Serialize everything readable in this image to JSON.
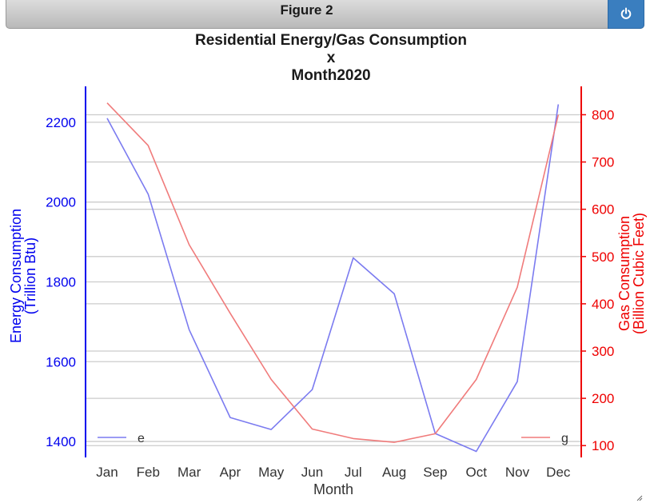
{
  "window": {
    "title": "Figure 2",
    "power_icon": "power-icon",
    "power_color": "#3a7ebf"
  },
  "chart_data": {
    "type": "line",
    "title": "Residential Energy/Gas Consumption\nx\nMonth2020",
    "xlabel": "Month",
    "categories": [
      "Jan",
      "Feb",
      "Mar",
      "Apr",
      "May",
      "Jun",
      "Jul",
      "Aug",
      "Sep",
      "Oct",
      "Nov",
      "Dec"
    ],
    "grid": true,
    "left_axis": {
      "label": "Energy Consumption\n(Trillion Btu)",
      "ticks": [
        1400,
        1600,
        1800,
        2000,
        2200
      ],
      "ylim": [
        1360,
        2290
      ],
      "color": "#0000ee"
    },
    "right_axis": {
      "label": "Gas Consumption\n(Billion Cubic Feet)",
      "ticks": [
        100,
        200,
        300,
        400,
        500,
        600,
        700,
        800
      ],
      "ylim": [
        75,
        860
      ],
      "color": "#ee0000"
    },
    "series": [
      {
        "name": "e",
        "axis": "left",
        "color": "#7b7bf0",
        "values": [
          2210,
          2020,
          1680,
          1460,
          1430,
          1530,
          1860,
          1770,
          1420,
          1375,
          1550,
          2245
        ],
        "legend_position": "bottom-left"
      },
      {
        "name": "g",
        "axis": "right",
        "color": "#f07b7b",
        "values": [
          825,
          735,
          525,
          380,
          240,
          135,
          115,
          107,
          125,
          240,
          435,
          800
        ],
        "legend_position": "bottom-right"
      }
    ]
  }
}
